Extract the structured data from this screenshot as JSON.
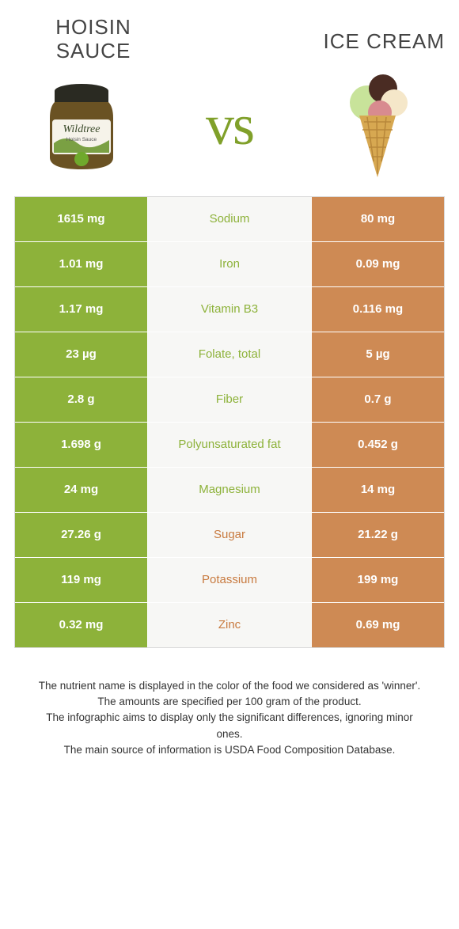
{
  "titles": {
    "left": "Hoisin\nsauce",
    "right": "Ice cream"
  },
  "vs_label": "vs",
  "colors": {
    "left_bg": "#8db23a",
    "right_bg": "#ce8a54",
    "mid_bg": "#f7f7f5",
    "text_green": "#8db23a",
    "text_orange": "#c87a3f",
    "border": "#d9d9d9"
  },
  "rows": [
    {
      "left": "1615 mg",
      "label": "Sodium",
      "right": "80 mg",
      "winner": "left"
    },
    {
      "left": "1.01 mg",
      "label": "Iron",
      "right": "0.09 mg",
      "winner": "left"
    },
    {
      "left": "1.17 mg",
      "label": "Vitamin B3",
      "right": "0.116 mg",
      "winner": "left"
    },
    {
      "left": "23 µg",
      "label": "Folate, total",
      "right": "5 µg",
      "winner": "left"
    },
    {
      "left": "2.8 g",
      "label": "Fiber",
      "right": "0.7 g",
      "winner": "left"
    },
    {
      "left": "1.698 g",
      "label": "Polyunsaturated fat",
      "right": "0.452 g",
      "winner": "left"
    },
    {
      "left": "24 mg",
      "label": "Magnesium",
      "right": "14 mg",
      "winner": "left"
    },
    {
      "left": "27.26 g",
      "label": "Sugar",
      "right": "21.22 g",
      "winner": "right"
    },
    {
      "left": "119 mg",
      "label": "Potassium",
      "right": "199 mg",
      "winner": "right"
    },
    {
      "left": "0.32 mg",
      "label": "Zinc",
      "right": "0.69 mg",
      "winner": "right"
    }
  ],
  "footer": [
    "The nutrient name is displayed in the color of the food we considered as 'winner'.",
    "The amounts are specified per 100 gram of the product.",
    "The infographic aims to display only the significant differences, ignoring minor ones.",
    "The main source of information is USDA Food Composition Database."
  ],
  "jar": {
    "lid_color": "#2a2a22",
    "glass_color": "#6a5223",
    "label_bg": "#f6f3ea",
    "brand": "Wildtree",
    "subtitle": "Hoisin Sauce",
    "badge_color": "#6fa92c"
  },
  "cone": {
    "cone_color": "#d7a851",
    "scoop_colors": [
      "#c8e39a",
      "#4a2c23",
      "#f5e7c9",
      "#d88b8f"
    ]
  }
}
